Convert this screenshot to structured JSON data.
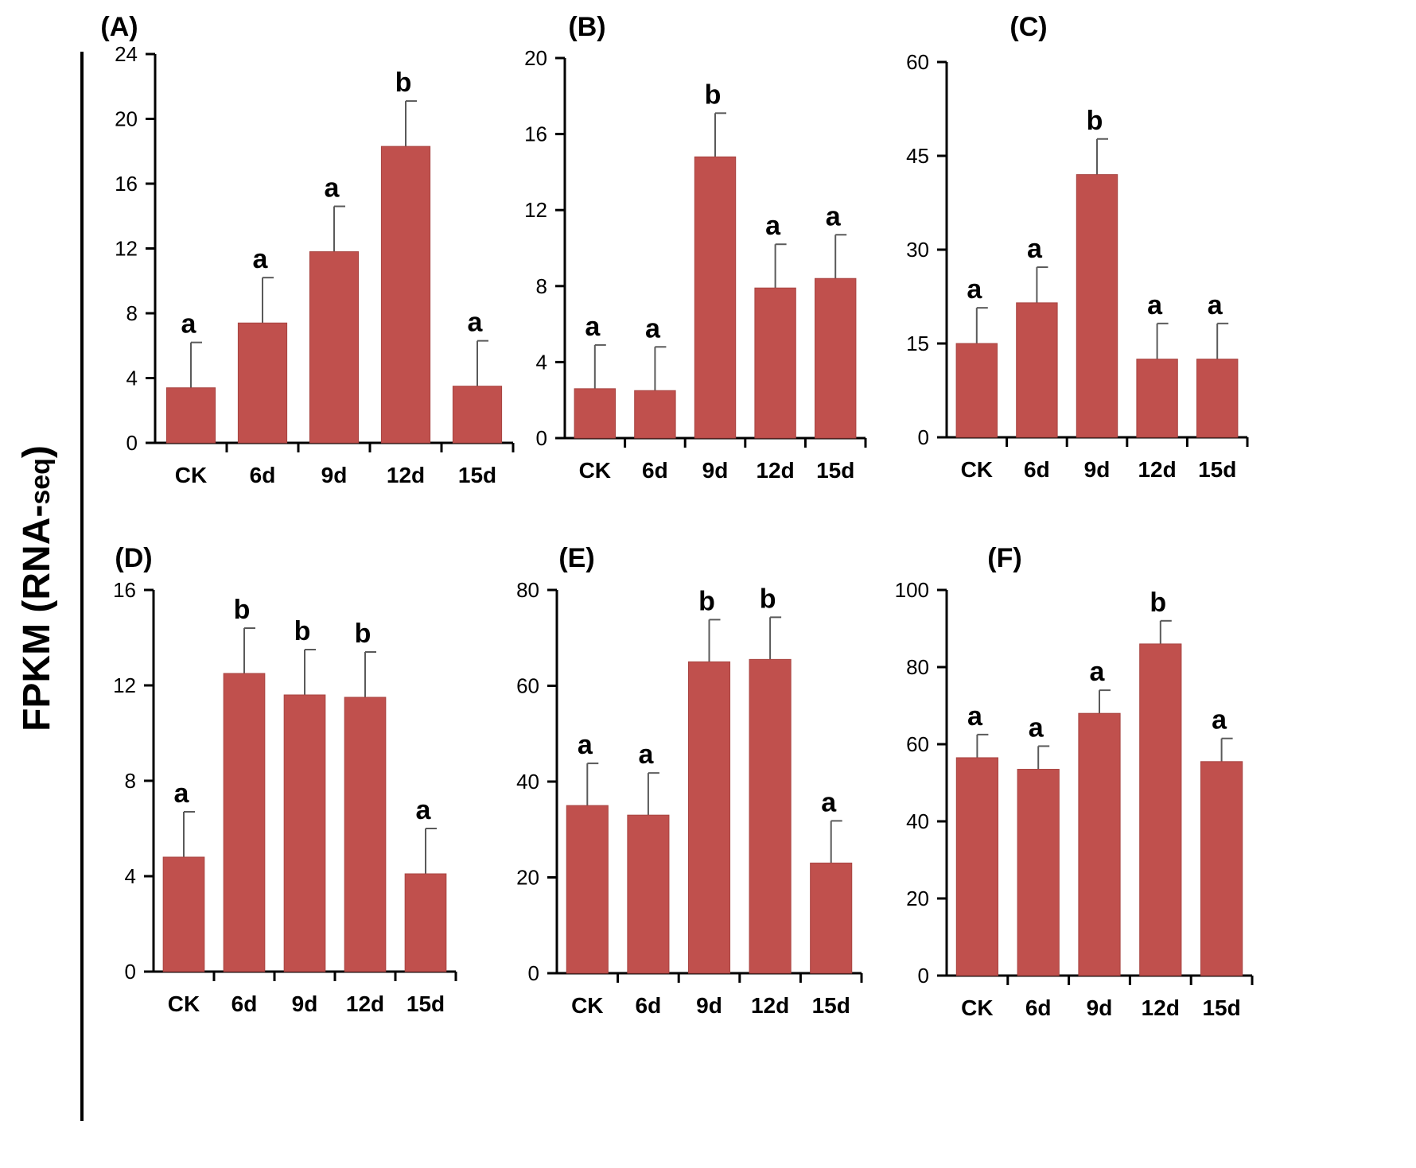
{
  "colors": {
    "bar": "#c0504d",
    "bar_stroke": "#a84441",
    "axis": "#000000",
    "error_bar": "#5a5a5a",
    "text": "#000000"
  },
  "figure": {
    "ylabel_main": "FPKM (RNA-",
    "ylabel_sub": "seq",
    "ylabel_close": ")"
  },
  "chart_data": [
    {
      "type": "bar",
      "panel_label": "(A)",
      "title": "",
      "xlabel": "",
      "ylabel": "FPKM (RNA-seq)",
      "categories": [
        "CK",
        "6d",
        "9d",
        "12d",
        "15d"
      ],
      "values": [
        3.4,
        7.4,
        11.8,
        18.3,
        3.5
      ],
      "errors": [
        2.8,
        2.8,
        2.8,
        2.8,
        2.8
      ],
      "significance": [
        "a",
        "a",
        "a",
        "b",
        "a"
      ],
      "ylim": [
        0,
        24
      ],
      "yticks": [
        0,
        4,
        8,
        12,
        16,
        20,
        24
      ],
      "ytick_labels": [
        "0",
        "4",
        "8",
        "12",
        "16",
        "20",
        "24"
      ],
      "grid": false
    },
    {
      "type": "bar",
      "panel_label": "(B)",
      "title": "",
      "xlabel": "",
      "ylabel": "FPKM (RNA-seq)",
      "categories": [
        "CK",
        "6d",
        "9d",
        "12d",
        "15d"
      ],
      "values": [
        2.6,
        2.5,
        14.8,
        7.9,
        8.4
      ],
      "errors": [
        2.3,
        2.3,
        2.3,
        2.3,
        2.3
      ],
      "significance": [
        "a",
        "a",
        "b",
        "a",
        "a"
      ],
      "ylim": [
        0,
        20
      ],
      "yticks": [
        0,
        4,
        8,
        12,
        16,
        20
      ],
      "ytick_labels": [
        "0",
        "4",
        "8",
        "12",
        "16",
        "20"
      ],
      "grid": false
    },
    {
      "type": "bar",
      "panel_label": "(C)",
      "title": "",
      "xlabel": "",
      "ylabel": "FPKM (RNA-seq)",
      "categories": [
        "CK",
        "6d",
        "9d",
        "12d",
        "15d"
      ],
      "values": [
        15,
        21.5,
        42,
        12.5,
        12.5
      ],
      "errors": [
        5.7,
        5.7,
        5.7,
        5.7,
        5.7
      ],
      "significance": [
        "a",
        "a",
        "b",
        "a",
        "a"
      ],
      "ylim": [
        0,
        60
      ],
      "yticks": [
        0,
        15,
        30,
        45,
        60
      ],
      "ytick_labels": [
        "0",
        "15",
        "30",
        "45",
        "60"
      ],
      "grid": false
    },
    {
      "type": "bar",
      "panel_label": "(D)",
      "title": "",
      "xlabel": "",
      "ylabel": "FPKM (RNA-seq)",
      "categories": [
        "CK",
        "6d",
        "9d",
        "12d",
        "15d"
      ],
      "values": [
        4.8,
        12.5,
        11.6,
        11.5,
        4.1
      ],
      "errors": [
        1.9,
        1.9,
        1.9,
        1.9,
        1.9
      ],
      "significance": [
        "a",
        "b",
        "b",
        "b",
        "a"
      ],
      "ylim": [
        0,
        16
      ],
      "yticks": [
        0,
        4,
        8,
        12,
        16
      ],
      "ytick_labels": [
        "0",
        "4",
        "8",
        "12",
        "16"
      ],
      "grid": false
    },
    {
      "type": "bar",
      "panel_label": "(E)",
      "title": "",
      "xlabel": "",
      "ylabel": "FPKM (RNA-seq)",
      "categories": [
        "CK",
        "6d",
        "9d",
        "12d",
        "15d"
      ],
      "values": [
        35,
        33,
        65,
        65.5,
        23
      ],
      "errors": [
        8.8,
        8.8,
        8.8,
        8.8,
        8.8
      ],
      "significance": [
        "a",
        "a",
        "b",
        "b",
        "a"
      ],
      "ylim": [
        0,
        80
      ],
      "yticks": [
        0,
        20,
        40,
        60,
        80
      ],
      "ytick_labels": [
        "0",
        "20",
        "40",
        "60",
        "80"
      ],
      "grid": false
    },
    {
      "type": "bar",
      "panel_label": "(F)",
      "title": "",
      "xlabel": "",
      "ylabel": "FPKM (RNA-seq)",
      "categories": [
        "CK",
        "6d",
        "9d",
        "12d",
        "15d"
      ],
      "values": [
        56.5,
        53.5,
        68,
        86,
        55.5
      ],
      "errors": [
        6,
        6,
        6,
        6,
        6
      ],
      "significance": [
        "a",
        "a",
        "a",
        "b",
        "a"
      ],
      "ylim": [
        0,
        100
      ],
      "yticks": [
        0,
        20,
        40,
        60,
        80,
        100
      ],
      "ytick_labels": [
        "0",
        "20",
        "40",
        "60",
        "80",
        "100"
      ],
      "grid": false
    }
  ]
}
